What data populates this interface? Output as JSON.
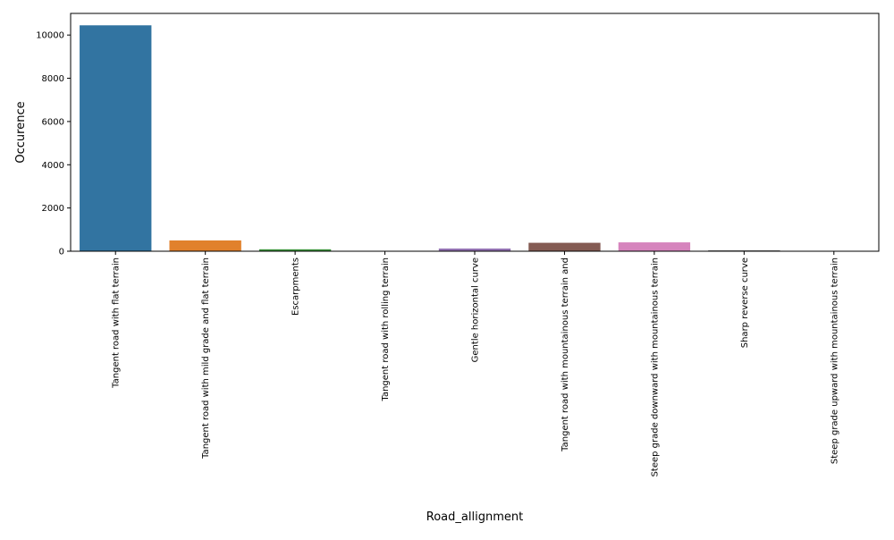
{
  "chart_data": {
    "type": "bar",
    "title": "",
    "xlabel": "Road_allignment",
    "ylabel": "Occurence",
    "ylim": [
      0,
      11000
    ],
    "yticks": [
      0,
      2000,
      4000,
      6000,
      8000,
      10000
    ],
    "grid": false,
    "categories": [
      "Tangent road with flat terrain",
      "Tangent road with mild grade and flat terrain",
      "Escarpments",
      "Tangent road with rolling terrain",
      "Gentle horizontal curve",
      "Tangent road with mountainous terrain and",
      "Steep grade downward with mountainous terrain",
      "Sharp reverse curve",
      "Steep grade upward with mountainous terrain"
    ],
    "values": [
      10450,
      500,
      90,
      15,
      125,
      390,
      410,
      45,
      10
    ],
    "colors": [
      "#3274a1",
      "#e1812c",
      "#3a923a",
      "#c03d3e",
      "#9372b2",
      "#845b53",
      "#d684bd",
      "#7f7f7f",
      "#a9aa35"
    ]
  }
}
